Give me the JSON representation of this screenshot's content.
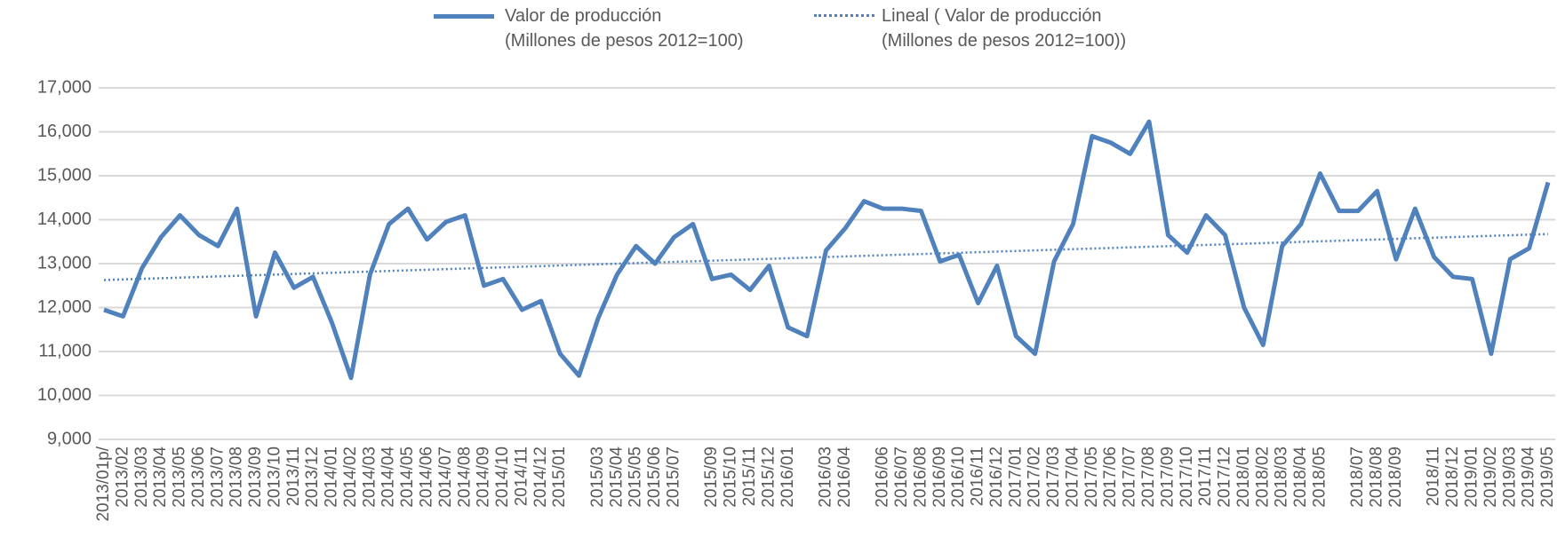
{
  "chart_data": {
    "type": "line",
    "categories": [
      "2013/01p/",
      "2013/02",
      "2013/03",
      "2013/04",
      "2013/05",
      "2013/06",
      "2013/07",
      "2013/08",
      "2013/09",
      "2013/10",
      "2013/11",
      "2013/12",
      "2014/01",
      "2014/02",
      "2014/03",
      "2014/04",
      "2014/05",
      "2014/06",
      "2014/07",
      "2014/08",
      "2014/09",
      "2014/10",
      "2014/11",
      "2014/12",
      "2015/01",
      null,
      "2015/03",
      "2015/04",
      "2015/05",
      "2015/06",
      "2015/07",
      null,
      "2015/09",
      "2015/10",
      "2015/11",
      "2015/12",
      "2016/01",
      null,
      "2016/03",
      "2016/04",
      null,
      "2016/06",
      "2016/07",
      "2016/08",
      "2016/09",
      "2016/10",
      "2016/11",
      "2016/12",
      "2017/01",
      "2017/02",
      "2017/03",
      "2017/04",
      "2017/05",
      "2017/06",
      "2017/07",
      "2017/08",
      "2017/09",
      "2017/10",
      "2017/11",
      "2017/12",
      "2018/01",
      "2018/02",
      "2018/03",
      "2018/04",
      "2018/05",
      null,
      "2018/07",
      "2018/08",
      "2018/09",
      null,
      "2018/11",
      "2018/12",
      "2019/01",
      "2019/02",
      "2019/03",
      "2019/04",
      "2019/05"
    ],
    "series": [
      {
        "name": "Valor de producción\n(Millones de pesos 2012=100)",
        "color": "#4f81bd",
        "values": [
          11950,
          11800,
          12900,
          13600,
          14100,
          13650,
          13400,
          14250,
          11800,
          13250,
          12450,
          12700,
          11650,
          10400,
          12750,
          13900,
          14250,
          13550,
          13950,
          14100,
          12500,
          12650,
          11950,
          12150,
          10950,
          10450,
          11750,
          12750,
          13400,
          13000,
          13600,
          13900,
          12650,
          12750,
          12400,
          12950,
          11550,
          11350,
          13300,
          13800,
          14420,
          14250,
          14250,
          14200,
          13050,
          13200,
          12100,
          12950,
          11350,
          10950,
          13050,
          13900,
          15900,
          15750,
          15500,
          16230,
          13650,
          13250,
          14100,
          13650,
          12000,
          11150,
          13400,
          13900,
          15050,
          14200,
          14200,
          14650,
          13100,
          14250,
          13150,
          12700,
          12650,
          10950,
          13100,
          13350,
          14850
        ]
      }
    ],
    "trendline": {
      "name": "Lineal ( Valor de producción\n(Millones de pesos 2012=100))",
      "color": "#4f81bd",
      "style": "dotted"
    },
    "ylim": [
      9000,
      17000
    ],
    "yticks": [
      {
        "value": 9000,
        "label": "9,000"
      },
      {
        "value": 10000,
        "label": "10,000"
      },
      {
        "value": 11000,
        "label": "11,000"
      },
      {
        "value": 12000,
        "label": "12,000"
      },
      {
        "value": 13000,
        "label": "13,000"
      },
      {
        "value": 14000,
        "label": "14,000"
      },
      {
        "value": 15000,
        "label": "15,000"
      },
      {
        "value": 16000,
        "label": "16,000"
      },
      {
        "value": 17000,
        "label": "17,000"
      }
    ],
    "grid": true,
    "legend": "top"
  }
}
